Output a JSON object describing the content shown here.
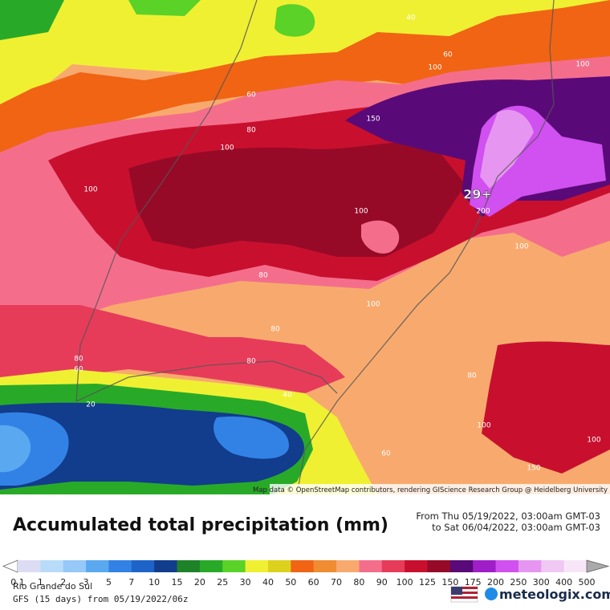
{
  "map": {
    "contour_labels": [
      "40",
      "60",
      "100",
      "100",
      "60",
      "150",
      "80",
      "100",
      "100",
      "29+",
      "100",
      "200",
      "100",
      "80",
      "100",
      "80",
      "80",
      "60",
      "80",
      "40",
      "20",
      "80",
      "100",
      "60",
      "100",
      "150"
    ],
    "attribution": "Map data © OpenStreetMap contributors, rendering GIScience Research Group @ Heidelberg University"
  },
  "header": {
    "title": "Accumulated total precipitation (mm)",
    "from": "From Thu 05/19/2022, 03:00am GMT-03",
    "to": "to Sat 06/04/2022, 03:00am GMT-03"
  },
  "legend": {
    "ticks": [
      "0.1",
      "1",
      "2",
      "3",
      "5",
      "7",
      "10",
      "15",
      "20",
      "25",
      "30",
      "40",
      "50",
      "60",
      "70",
      "80",
      "90",
      "100",
      "125",
      "150",
      "175",
      "200",
      "250",
      "300",
      "400",
      "500"
    ],
    "colors": [
      "#dcdcf4",
      "#b8dcf8",
      "#96c8f8",
      "#5aa8f0",
      "#3282e6",
      "#1e64c8",
      "#123c8c",
      "#1e8228",
      "#28aa28",
      "#5ad228",
      "#f0f032",
      "#dcd21e",
      "#f06414",
      "#f08c32",
      "#f8aa6e",
      "#f46e8c",
      "#e63c5a",
      "#c8102e",
      "#960a28",
      "#5a0a78",
      "#a01ec8",
      "#d050f0",
      "#e696f0",
      "#f0c8f4",
      "#f8e6f8"
    ]
  },
  "footer": {
    "region": "Rio Grande do Sul",
    "model": "GFS (15 days) from 05/19/2022/06z",
    "brand": "meteologix.com"
  }
}
